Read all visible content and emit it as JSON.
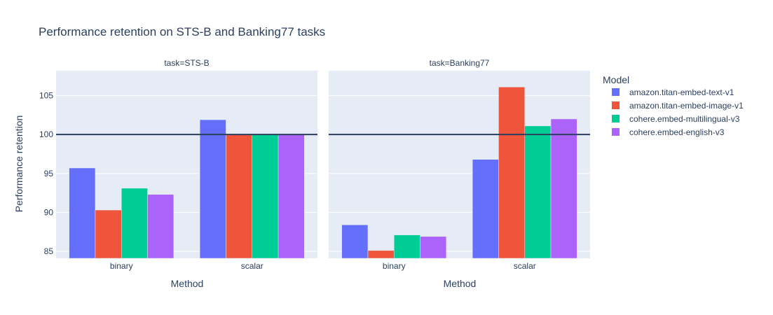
{
  "chart_data": {
    "type": "bar",
    "title": "Performance retention on STS-B and Banking77 tasks",
    "ylabel": "Performance retention",
    "xlabel": "Method",
    "ylim": [
      84.1,
      108.2
    ],
    "yticks": [
      85,
      90,
      95,
      100,
      105
    ],
    "reference_line": 100,
    "categories": [
      "binary",
      "scalar"
    ],
    "legend": {
      "title": "Model",
      "placement": "right"
    },
    "series": [
      {
        "name": "amazon.titan-embed-text-v1",
        "color": "#636efa"
      },
      {
        "name": "amazon.titan-embed-image-v1",
        "color": "#ef553b"
      },
      {
        "name": "cohere.embed-multilingual-v3",
        "color": "#00cc96"
      },
      {
        "name": "cohere.embed-english-v3",
        "color": "#ab63fa"
      }
    ],
    "facets": [
      {
        "title": "task=STS-B",
        "values": [
          [
            95.7,
            101.9
          ],
          [
            90.3,
            100.0
          ],
          [
            93.1,
            100.0
          ],
          [
            92.3,
            100.0
          ]
        ]
      },
      {
        "title": "task=Banking77",
        "values": [
          [
            88.4,
            96.8
          ],
          [
            85.1,
            106.1
          ],
          [
            87.1,
            101.1
          ],
          [
            86.9,
            102.0
          ]
        ]
      }
    ]
  }
}
